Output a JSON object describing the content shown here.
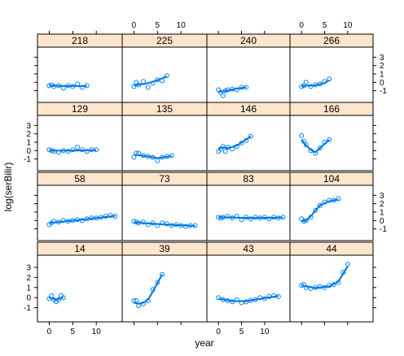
{
  "chart_data": {
    "type": "scatter",
    "xlabel": "year",
    "ylabel": "log(serBilir)",
    "xlim": [
      -2.5,
      15.5
    ],
    "ylim": [
      -2.4,
      4.2
    ],
    "x_ticks": [
      0,
      5,
      10
    ],
    "y_ticks": [
      -1,
      0,
      1,
      2,
      3
    ],
    "colors": {
      "points": "#0080ff",
      "curve": "#0072cc",
      "strip": "#ffe5cc"
    },
    "panels": [
      {
        "id": "218",
        "x": [
          0.0,
          0.5,
          1.0,
          2.0,
          3.0,
          4.0,
          5.0,
          6.0,
          7.0,
          8.0
        ],
        "y": [
          -0.4,
          -0.3,
          -0.5,
          -0.4,
          -0.7,
          -0.4,
          -0.5,
          -0.2,
          -0.6,
          -0.4
        ],
        "fit": [
          [
            0,
            -0.4
          ],
          [
            4,
            -0.45
          ],
          [
            8,
            -0.45
          ]
        ]
      },
      {
        "id": "225",
        "x": [
          0.0,
          0.5,
          1.0,
          2.0,
          3.0,
          4.0,
          5.0,
          6.0,
          7.0
        ],
        "y": [
          -0.5,
          0.0,
          -0.3,
          0.1,
          -0.6,
          -0.1,
          0.3,
          0.2,
          0.8
        ],
        "fit": [
          [
            0,
            -0.4
          ],
          [
            3,
            -0.1
          ],
          [
            5,
            0.25
          ],
          [
            7,
            0.7
          ]
        ]
      },
      {
        "id": "240",
        "x": [
          0.0,
          0.5,
          1.0,
          1.5,
          2.0,
          3.0,
          4.0,
          5.0,
          6.0
        ],
        "y": [
          -0.9,
          -1.2,
          -1.6,
          -1.0,
          -0.9,
          -0.8,
          -0.9,
          -0.6,
          -0.6
        ],
        "fit": [
          [
            0,
            -1.15
          ],
          [
            2,
            -1.0
          ],
          [
            4,
            -0.75
          ],
          [
            6,
            -0.6
          ]
        ]
      },
      {
        "id": "266",
        "x": [
          0.0,
          0.5,
          1.0,
          2.0,
          3.0,
          4.0,
          5.0,
          6.0
        ],
        "y": [
          -0.5,
          -0.4,
          0.0,
          -0.5,
          -0.3,
          -0.2,
          0.1,
          0.4
        ],
        "fit": [
          [
            0,
            -0.45
          ],
          [
            3,
            -0.35
          ],
          [
            5,
            -0.1
          ],
          [
            6,
            0.25
          ]
        ]
      },
      {
        "id": "129",
        "x": [
          0.0,
          0.5,
          1.0,
          2.0,
          3.0,
          4.0,
          5.0,
          6.0,
          7.0,
          8.0,
          9.0,
          10.0
        ],
        "y": [
          0.1,
          0.0,
          -0.1,
          -0.2,
          0.0,
          -0.1,
          0.1,
          0.4,
          0.1,
          -0.1,
          0.1,
          0.1
        ],
        "fit": [
          [
            0,
            0.0
          ],
          [
            5,
            0.0
          ],
          [
            10,
            0.05
          ]
        ]
      },
      {
        "id": "135",
        "x": [
          0.0,
          0.5,
          1.0,
          2.0,
          3.0,
          4.0,
          5.0,
          6.0,
          7.0,
          8.0
        ],
        "y": [
          -0.8,
          -0.3,
          -0.3,
          -0.6,
          -0.7,
          -0.8,
          -1.2,
          -0.8,
          -0.7,
          -0.6
        ],
        "fit": [
          [
            0,
            -0.5
          ],
          [
            3,
            -0.7
          ],
          [
            5,
            -0.9
          ],
          [
            8,
            -0.65
          ]
        ]
      },
      {
        "id": "146",
        "x": [
          0.0,
          0.5,
          1.0,
          1.5,
          2.0,
          3.0,
          4.0,
          5.0,
          6.0,
          7.0
        ],
        "y": [
          -0.1,
          0.2,
          0.5,
          -0.1,
          0.4,
          0.2,
          0.5,
          0.9,
          1.2,
          1.7
        ],
        "fit": [
          [
            0,
            0.2
          ],
          [
            1,
            0.4
          ],
          [
            2,
            0.3
          ],
          [
            4,
            0.6
          ],
          [
            7,
            1.7
          ]
        ]
      },
      {
        "id": "166",
        "x": [
          0.0,
          0.5,
          1.0,
          2.0,
          3.0,
          4.0,
          5.0,
          6.0
        ],
        "y": [
          1.8,
          1.1,
          0.7,
          0.0,
          -0.3,
          0.3,
          1.0,
          1.3
        ],
        "fit": [
          [
            0,
            1.3
          ],
          [
            1,
            0.6
          ],
          [
            2,
            0.1
          ],
          [
            3,
            -0.2
          ],
          [
            4,
            0.3
          ],
          [
            6,
            1.3
          ]
        ]
      },
      {
        "id": "58",
        "x": [
          0.0,
          0.5,
          1.0,
          2.0,
          3.0,
          4.0,
          5.0,
          6.0,
          7.0,
          8.0,
          9.0,
          10.0,
          11.0,
          12.0,
          13.0,
          14.0
        ],
        "y": [
          -0.5,
          -0.3,
          -0.1,
          -0.2,
          0.0,
          -0.1,
          0.0,
          0.1,
          0.0,
          0.2,
          0.3,
          0.3,
          0.4,
          0.5,
          0.6,
          0.5
        ],
        "fit": [
          [
            0,
            -0.3
          ],
          [
            7,
            0.1
          ],
          [
            14,
            0.55
          ]
        ]
      },
      {
        "id": "73",
        "x": [
          0.0,
          0.5,
          1.0,
          2.0,
          3.0,
          4.0,
          5.0,
          6.0,
          7.0,
          8.0,
          9.0,
          10.0,
          11.0,
          12.0,
          13.0
        ],
        "y": [
          -0.1,
          -0.2,
          -0.3,
          -0.2,
          -0.5,
          -0.3,
          -0.6,
          -0.3,
          -0.4,
          -0.6,
          -0.5,
          -0.6,
          -0.7,
          -0.6,
          -0.6
        ],
        "fit": [
          [
            0,
            -0.25
          ],
          [
            7,
            -0.5
          ],
          [
            13,
            -0.65
          ]
        ]
      },
      {
        "id": "83",
        "x": [
          0.0,
          0.5,
          1.0,
          2.0,
          3.0,
          4.0,
          5.0,
          6.0,
          7.0,
          8.0,
          9.0,
          10.0,
          11.0,
          12.0,
          13.0,
          14.0
        ],
        "y": [
          0.4,
          0.3,
          0.4,
          0.5,
          0.3,
          0.5,
          0.1,
          0.4,
          0.2,
          0.4,
          0.3,
          0.4,
          0.2,
          0.4,
          0.3,
          0.4
        ],
        "fit": [
          [
            0,
            0.4
          ],
          [
            7,
            0.3
          ],
          [
            14,
            0.35
          ]
        ]
      },
      {
        "id": "104",
        "x": [
          0.0,
          0.5,
          1.0,
          2.0,
          3.0,
          4.0,
          5.0,
          6.0,
          7.0,
          8.0
        ],
        "y": [
          0.2,
          -0.1,
          0.0,
          0.4,
          1.2,
          1.8,
          2.2,
          2.4,
          2.4,
          2.6
        ],
        "fit": [
          [
            0,
            -0.1
          ],
          [
            1,
            0.0
          ],
          [
            2,
            0.5
          ],
          [
            3,
            1.2
          ],
          [
            4,
            1.8
          ],
          [
            6,
            2.3
          ],
          [
            8,
            2.5
          ]
        ]
      },
      {
        "id": "14",
        "x": [
          0.0,
          0.5,
          1.0,
          1.5,
          2.0,
          2.5,
          3.0
        ],
        "y": [
          -0.1,
          0.2,
          -0.2,
          -0.4,
          -0.2,
          0.2,
          0.0
        ],
        "fit": [
          [
            0,
            0.0
          ],
          [
            1.5,
            -0.2
          ],
          [
            3,
            0.05
          ]
        ]
      },
      {
        "id": "39",
        "x": [
          0.0,
          0.5,
          1.0,
          2.0,
          3.0,
          4.0,
          5.0,
          6.0
        ],
        "y": [
          -0.3,
          -0.3,
          -0.8,
          -0.6,
          -0.3,
          0.8,
          1.5,
          2.3
        ],
        "fit": [
          [
            0,
            -0.5
          ],
          [
            1,
            -0.6
          ],
          [
            2,
            -0.5
          ],
          [
            3,
            -0.2
          ],
          [
            4,
            0.6
          ],
          [
            6,
            2.3
          ]
        ]
      },
      {
        "id": "43",
        "x": [
          0.0,
          1.0,
          2.0,
          3.0,
          4.0,
          5.0,
          6.0,
          7.0,
          8.0,
          9.0,
          10.0,
          11.0,
          12.0,
          13.0
        ],
        "y": [
          0.0,
          -0.2,
          -0.3,
          -0.4,
          -0.2,
          -0.5,
          -0.4,
          -0.3,
          -0.2,
          0.0,
          -0.1,
          0.1,
          0.2,
          0.1
        ],
        "fit": [
          [
            0,
            -0.1
          ],
          [
            3,
            -0.35
          ],
          [
            6,
            -0.35
          ],
          [
            10,
            -0.05
          ],
          [
            13,
            0.15
          ]
        ]
      },
      {
        "id": "44",
        "x": [
          0.0,
          0.5,
          1.0,
          2.0,
          3.0,
          4.0,
          5.0,
          6.0,
          7.0,
          8.0,
          9.0,
          10.0
        ],
        "y": [
          1.2,
          1.3,
          1.0,
          0.9,
          1.0,
          1.1,
          1.0,
          1.2,
          1.3,
          1.5,
          2.5,
          3.3
        ],
        "fit": [
          [
            0,
            1.2
          ],
          [
            3,
            0.95
          ],
          [
            6,
            1.1
          ],
          [
            8,
            1.6
          ],
          [
            10,
            3.1
          ]
        ]
      }
    ]
  }
}
